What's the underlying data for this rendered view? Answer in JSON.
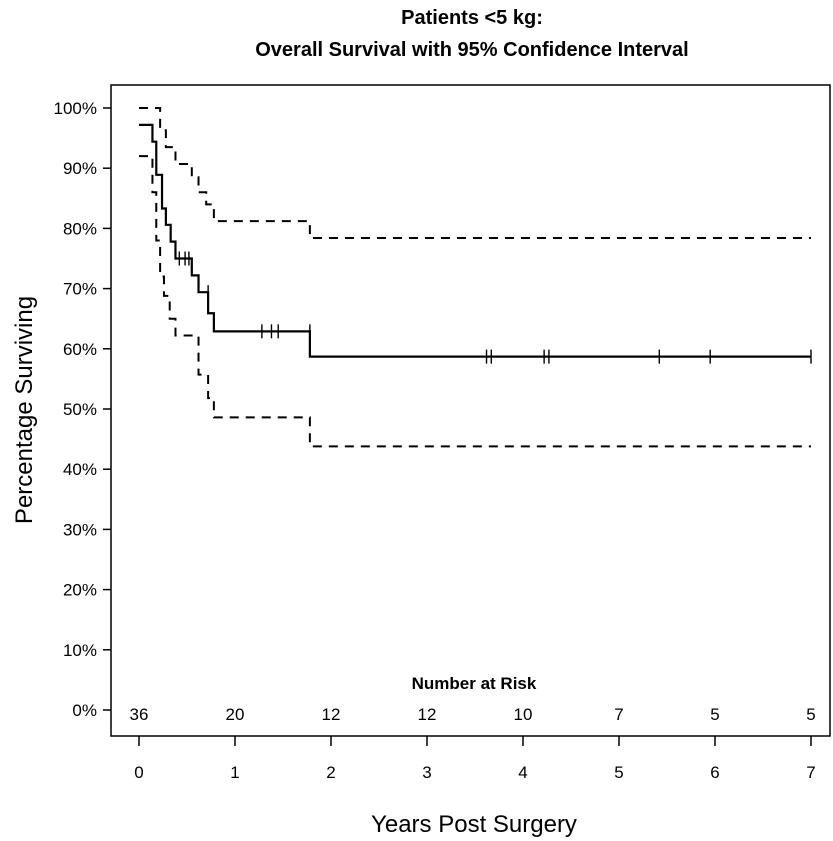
{
  "chart_data": {
    "type": "line",
    "title": "Patients <5 kg:",
    "subtitle": "Overall Survival with 95% Confidence Interval",
    "xlabel": "Years Post Surgery",
    "ylabel": "Percentage Surviving",
    "xlim": [
      0,
      7
    ],
    "ylim": [
      0,
      100
    ],
    "x_ticks": [
      0,
      1,
      2,
      3,
      4,
      5,
      6,
      7
    ],
    "x_tick_labels": [
      "0",
      "1",
      "2",
      "3",
      "4",
      "5",
      "6",
      "7"
    ],
    "y_ticks": [
      0,
      10,
      20,
      30,
      40,
      50,
      60,
      70,
      80,
      90,
      100
    ],
    "y_tick_labels": [
      "0%",
      "10%",
      "20%",
      "30%",
      "40%",
      "50%",
      "60%",
      "70%",
      "80%",
      "90%",
      "100%"
    ],
    "grid": false,
    "legend": "none",
    "series": [
      {
        "style": "solid",
        "x": [
          0,
          0.14,
          0.18,
          0.24,
          0.28,
          0.33,
          0.38,
          0.55,
          0.62,
          0.72,
          0.78,
          1.78,
          7.0
        ],
        "y": [
          97.2,
          94.4,
          88.9,
          83.3,
          80.6,
          77.8,
          75.0,
          72.2,
          69.4,
          65.9,
          62.9,
          58.7,
          58.7
        ]
      },
      {
        "style": "dashed",
        "x": [
          0,
          0.22,
          0.28,
          0.38,
          0.55,
          0.62,
          0.7,
          0.78,
          1.78,
          7.0
        ],
        "y": [
          100,
          96.3,
          93.5,
          90.7,
          88.5,
          86.0,
          84.0,
          81.2,
          78.4,
          78.4
        ]
      },
      {
        "style": "dashed",
        "x": [
          0,
          0.14,
          0.18,
          0.22,
          0.26,
          0.32,
          0.38,
          0.5,
          0.62,
          0.72,
          0.78,
          1.78,
          7.0
        ],
        "y": [
          92.0,
          86.0,
          78.0,
          72.0,
          68.8,
          65.0,
          62.2,
          62.2,
          55.7,
          51.8,
          48.6,
          43.8,
          43.8
        ]
      }
    ],
    "censor_marks": {
      "x": [
        0.42,
        0.48,
        0.52,
        0.72,
        1.28,
        1.38,
        1.45,
        1.78,
        3.62,
        3.67,
        4.22,
        4.27,
        5.42,
        5.95,
        7.0
      ],
      "y": [
        75.0,
        75.0,
        75.0,
        69.4,
        62.9,
        62.9,
        62.9,
        62.9,
        58.7,
        58.7,
        58.7,
        58.7,
        58.7,
        58.7,
        58.7
      ]
    },
    "number_at_risk": {
      "title": "Number at Risk",
      "x": [
        0,
        1,
        2,
        3,
        4,
        5,
        6,
        7
      ],
      "values": [
        "36",
        "20",
        "12",
        "12",
        "10",
        "7",
        "5",
        "5"
      ]
    }
  }
}
